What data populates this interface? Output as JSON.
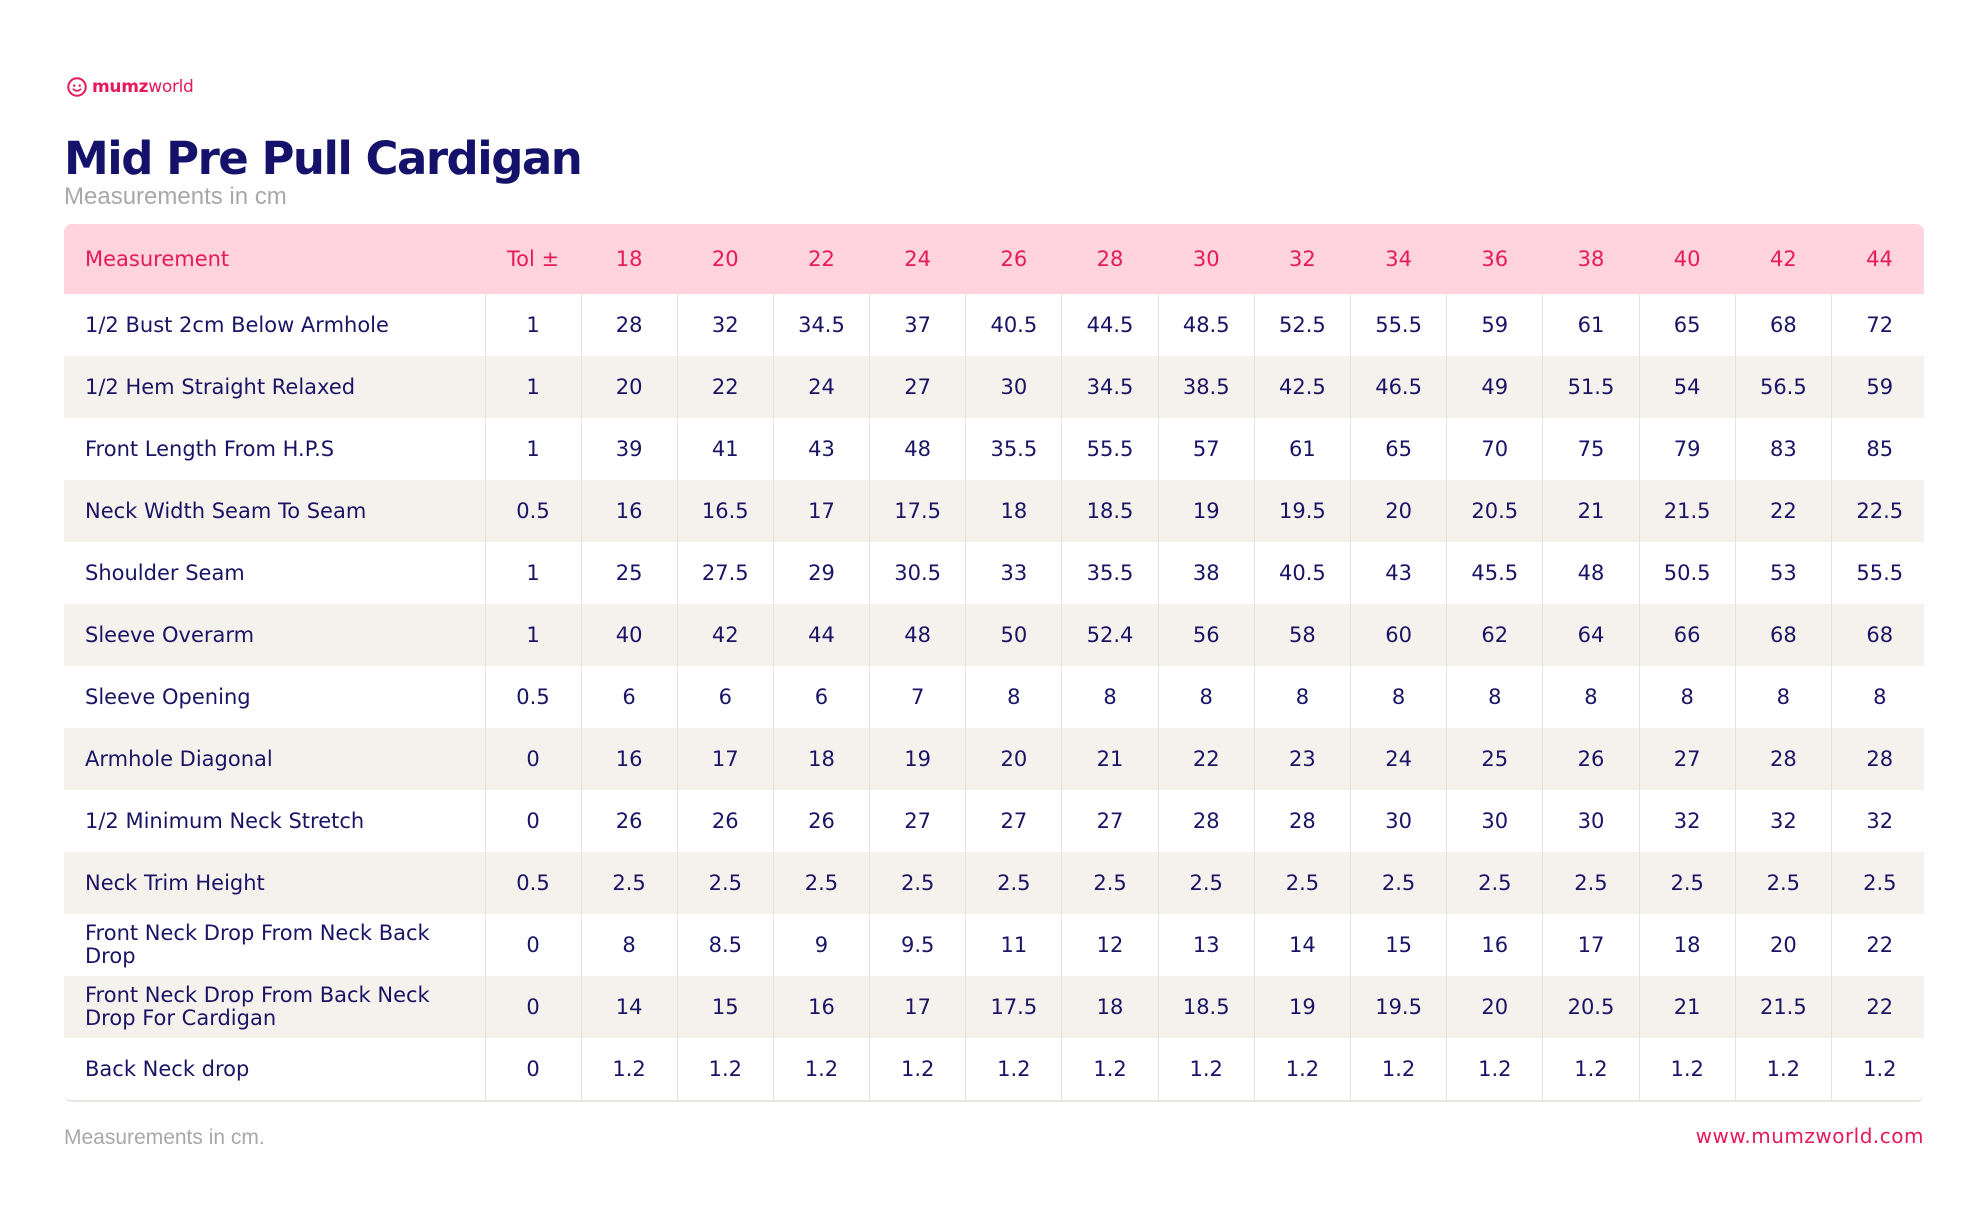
{
  "brand": {
    "logo_light": "mumz",
    "logo_rest": "world",
    "logo_icon": "mumzworld-logo-icon",
    "accent_color": "#e6195a",
    "text_color": "#1a1464",
    "header_bg": "#ffd4df",
    "stripe_bg": "#f5f2ee"
  },
  "title": "Mid Pre Pull Cardigan",
  "subtitle": "Measurements in cm",
  "table": {
    "headers": [
      "Measurement",
      "Tol ±",
      "18",
      "20",
      "22",
      "24",
      "26",
      "28",
      "30",
      "32",
      "34",
      "36",
      "38",
      "40",
      "42",
      "44"
    ],
    "rows": [
      [
        "1/2 Bust 2cm Below Armhole",
        "1",
        "28",
        "32",
        "34.5",
        "37",
        "40.5",
        "44.5",
        "48.5",
        "52.5",
        "55.5",
        "59",
        "61",
        "65",
        "68",
        "72"
      ],
      [
        "1/2 Hem Straight Relaxed",
        "1",
        "20",
        "22",
        "24",
        "27",
        "30",
        "34.5",
        "38.5",
        "42.5",
        "46.5",
        "49",
        "51.5",
        "54",
        "56.5",
        "59"
      ],
      [
        "Front Length From H.P.S",
        "1",
        "39",
        "41",
        "43",
        "48",
        "35.5",
        "55.5",
        "57",
        "61",
        "65",
        "70",
        "75",
        "79",
        "83",
        "85"
      ],
      [
        "Neck Width Seam To Seam",
        "0.5",
        "16",
        "16.5",
        "17",
        "17.5",
        "18",
        "18.5",
        "19",
        "19.5",
        "20",
        "20.5",
        "21",
        "21.5",
        "22",
        "22.5"
      ],
      [
        "Shoulder Seam",
        "1",
        "25",
        "27.5",
        "29",
        "30.5",
        "33",
        "35.5",
        "38",
        "40.5",
        "43",
        "45.5",
        "48",
        "50.5",
        "53",
        "55.5"
      ],
      [
        "Sleeve Overarm",
        "1",
        "40",
        "42",
        "44",
        "48",
        "50",
        "52.4",
        "56",
        "58",
        "60",
        "62",
        "64",
        "66",
        "68",
        "68"
      ],
      [
        "Sleeve Opening",
        "0.5",
        "6",
        "6",
        "6",
        "7",
        "8",
        "8",
        "8",
        "8",
        "8",
        "8",
        "8",
        "8",
        "8",
        "8"
      ],
      [
        "Armhole Diagonal",
        "0",
        "16",
        "17",
        "18",
        "19",
        "20",
        "21",
        "22",
        "23",
        "24",
        "25",
        "26",
        "27",
        "28",
        "28"
      ],
      [
        "1/2 Minimum Neck Stretch",
        "0",
        "26",
        "26",
        "26",
        "27",
        "27",
        "27",
        "28",
        "28",
        "30",
        "30",
        "30",
        "32",
        "32",
        "32"
      ],
      [
        "Neck Trim Height",
        "0.5",
        "2.5",
        "2.5",
        "2.5",
        "2.5",
        "2.5",
        "2.5",
        "2.5",
        "2.5",
        "2.5",
        "2.5",
        "2.5",
        "2.5",
        "2.5",
        "2.5"
      ],
      [
        "Front Neck Drop From Neck Back Drop",
        "0",
        "8",
        "8.5",
        "9",
        "9.5",
        "11",
        "12",
        "13",
        "14",
        "15",
        "16",
        "17",
        "18",
        "20",
        "22"
      ],
      [
        "Front Neck Drop From Back Neck Drop For Cardigan",
        "0",
        "14",
        "15",
        "16",
        "17",
        "17.5",
        "18",
        "18.5",
        "19",
        "19.5",
        "20",
        "20.5",
        "21",
        "21.5",
        "22"
      ],
      [
        "Back Neck drop",
        "0",
        "1.2",
        "1.2",
        "1.2",
        "1.2",
        "1.2",
        "1.2",
        "1.2",
        "1.2",
        "1.2",
        "1.2",
        "1.2",
        "1.2",
        "1.2",
        "1.2"
      ]
    ]
  },
  "footer": {
    "note": "Measurements in cm.",
    "url": "www.mumzworld.com"
  }
}
